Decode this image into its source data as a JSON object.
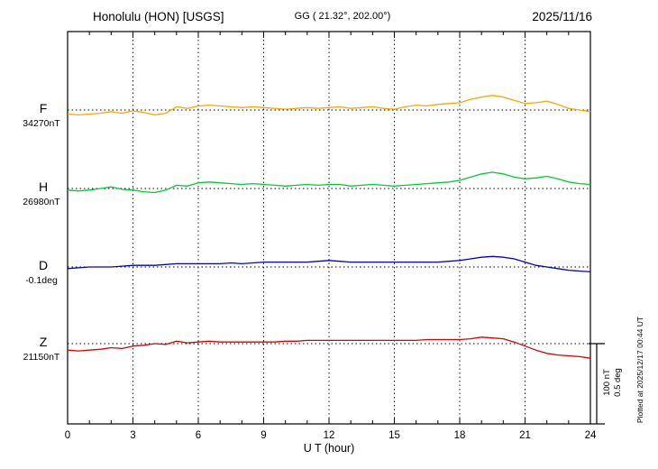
{
  "header": {
    "station": "Honolulu (HON)  [USGS]",
    "gg": "GG ( 21.32°, 202.00°)",
    "date": "2025/11/16"
  },
  "footer": {
    "xlabel": "U T (hour)"
  },
  "side": {
    "scale_labels": [
      "100 nT",
      "0.5 deg"
    ],
    "plotted_at": "Plotted at 2025/12/17 00:44 UT"
  },
  "chart_data": {
    "type": "line",
    "title": "Honolulu (HON) [USGS] magnetogram 2025/11/16",
    "xlabel": "U T (hour)",
    "xlim": [
      0,
      24
    ],
    "x_ticks": [
      0,
      3,
      6,
      9,
      12,
      15,
      18,
      21,
      24
    ],
    "x_step_hours": 0.5,
    "grid": "vertical-dotted-at-major-ticks",
    "legend_position": "left-of-each-trace",
    "scale_bar": {
      "nT": 100,
      "deg": 0.5
    },
    "series": [
      {
        "name": "F",
        "unit": "nT",
        "baseline_value_label": "34270nT",
        "color": "#ffa500",
        "offsets": [
          -5,
          -6,
          -5,
          -4,
          -2,
          -4,
          -1,
          -3,
          -6,
          -4,
          4,
          2,
          5,
          6,
          5,
          4,
          3,
          4,
          3,
          2,
          1,
          2,
          3,
          2,
          3,
          4,
          2,
          3,
          4,
          2,
          1,
          4,
          6,
          5,
          7,
          8,
          9,
          13,
          16,
          18,
          16,
          12,
          8,
          9,
          11,
          7,
          2,
          0,
          -2
        ]
      },
      {
        "name": "H",
        "unit": "nT",
        "baseline_value_label": "26980nT",
        "color": "#00cc33",
        "offsets": [
          -2,
          -3,
          -2,
          0,
          2,
          -1,
          -2,
          -4,
          -5,
          -2,
          4,
          3,
          7,
          8,
          7,
          6,
          5,
          6,
          5,
          4,
          3,
          4,
          5,
          4,
          5,
          5,
          3,
          4,
          5,
          4,
          3,
          4,
          5,
          6,
          7,
          8,
          10,
          14,
          18,
          20,
          18,
          14,
          12,
          13,
          15,
          12,
          8,
          6,
          5
        ]
      },
      {
        "name": "D",
        "unit": "deg",
        "baseline_value_label": "-0.1deg",
        "color": "#0000cc",
        "offsets": [
          -0.01,
          -0.005,
          0,
          0,
          0,
          0.005,
          0.01,
          0.01,
          0.01,
          0.015,
          0.02,
          0.02,
          0.02,
          0.02,
          0.02,
          0.025,
          0.02,
          0.025,
          0.03,
          0.03,
          0.03,
          0.03,
          0.03,
          0.035,
          0.04,
          0.035,
          0.03,
          0.03,
          0.03,
          0.03,
          0.03,
          0.03,
          0.03,
          0.03,
          0.03,
          0.035,
          0.04,
          0.05,
          0.06,
          0.065,
          0.06,
          0.05,
          0.03,
          0.01,
          0,
          -0.01,
          -0.02,
          -0.025,
          -0.03
        ]
      },
      {
        "name": "Z",
        "unit": "nT",
        "baseline_value_label": "21150nT",
        "color": "#dd0000",
        "offsets": [
          -8,
          -9,
          -8,
          -7,
          -5,
          -6,
          -3,
          -2,
          0,
          -1,
          3,
          1,
          2,
          3,
          2,
          2,
          2,
          2,
          2,
          2,
          3,
          3,
          4,
          4,
          4,
          4,
          4,
          4,
          4,
          4,
          4,
          4,
          4,
          5,
          5,
          5,
          5,
          6,
          8,
          7,
          6,
          2,
          -3,
          -8,
          -12,
          -14,
          -15,
          -16,
          -18
        ]
      }
    ]
  }
}
